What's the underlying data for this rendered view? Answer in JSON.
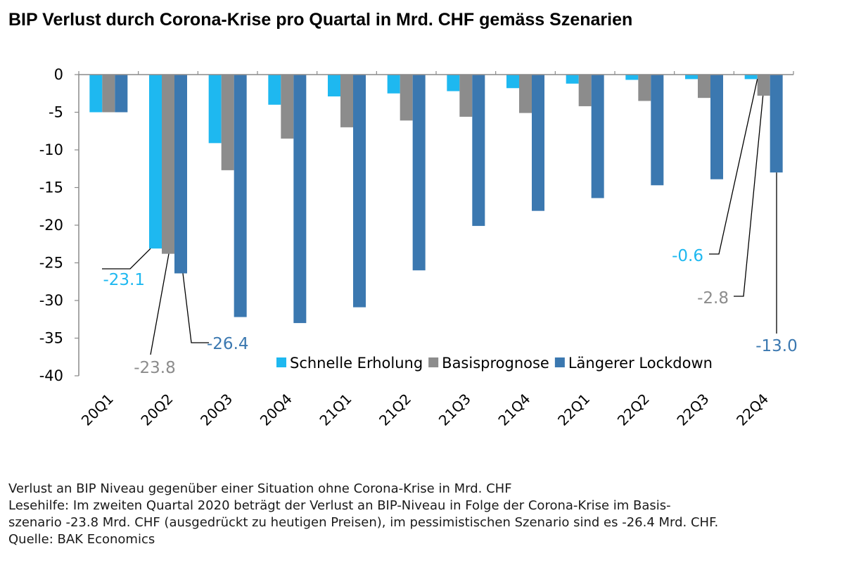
{
  "chart_data": {
    "type": "bar",
    "title": "BIP Verlust durch Corona-Krise pro Quartal in Mrd. CHF gemäss Szenarien",
    "categories": [
      "20Q1",
      "20Q2",
      "20Q3",
      "20Q4",
      "21Q1",
      "21Q2",
      "21Q3",
      "21Q4",
      "22Q1",
      "22Q2",
      "22Q3",
      "22Q4"
    ],
    "ylim": [
      -40,
      0
    ],
    "yticks": [
      0,
      -5,
      -10,
      -15,
      -20,
      -25,
      -30,
      -35,
      -40
    ],
    "ytick_labels": [
      "0",
      "-5",
      "-10",
      "-15",
      "-20",
      "-25",
      "-30",
      "-35",
      "-40"
    ],
    "legend_position": "bottom-right",
    "grid": false,
    "series": [
      {
        "name": "Schnelle Erholung",
        "color": "#1EB8F0",
        "values": [
          -5.0,
          -23.1,
          -9.1,
          -4.0,
          -2.9,
          -2.5,
          -2.2,
          -1.8,
          -1.2,
          -0.7,
          -0.6,
          -0.6
        ]
      },
      {
        "name": "Basisprognose",
        "color": "#8C8C8C",
        "values": [
          -5.0,
          -23.8,
          -12.7,
          -8.5,
          -7.0,
          -6.1,
          -5.6,
          -5.1,
          -4.2,
          -3.5,
          -3.1,
          -2.8
        ]
      },
      {
        "name": "Längerer Lockdown",
        "color": "#3B78B0",
        "values": [
          -5.0,
          -26.4,
          -32.2,
          -33.0,
          -30.9,
          -26.0,
          -20.1,
          -18.1,
          -16.4,
          -14.7,
          -13.9,
          -13.0
        ]
      }
    ],
    "annotations": [
      {
        "text": "-23.1",
        "series": 0,
        "category": "20Q2",
        "color": "#1EB8F0"
      },
      {
        "text": "-23.8",
        "series": 1,
        "category": "20Q2",
        "color": "#8C8C8C"
      },
      {
        "text": "-26.4",
        "series": 2,
        "category": "20Q2",
        "color": "#3B78B0"
      },
      {
        "text": "-0.6",
        "series": 0,
        "category": "22Q4",
        "color": "#1EB8F0"
      },
      {
        "text": "-2.8",
        "series": 1,
        "category": "22Q4",
        "color": "#8C8C8C"
      },
      {
        "text": "-13.0",
        "series": 2,
        "category": "22Q4",
        "color": "#3B78B0"
      }
    ]
  },
  "notes": {
    "line1": "Verlust an BIP Niveau gegenüber einer Situation ohne Corona-Krise in Mrd. CHF",
    "line2": "Lesehilfe: Im zweiten Quartal 2020 beträgt der Verlust an BIP-Niveau in Folge der Corona-Krise im Basis-",
    "line3": "szenario -23.8 Mrd. CHF (ausgedrückt zu heutigen Preisen), im pessimistischen Szenario sind es -26.4 Mrd. CHF.",
    "source": "Quelle: BAK Economics"
  }
}
